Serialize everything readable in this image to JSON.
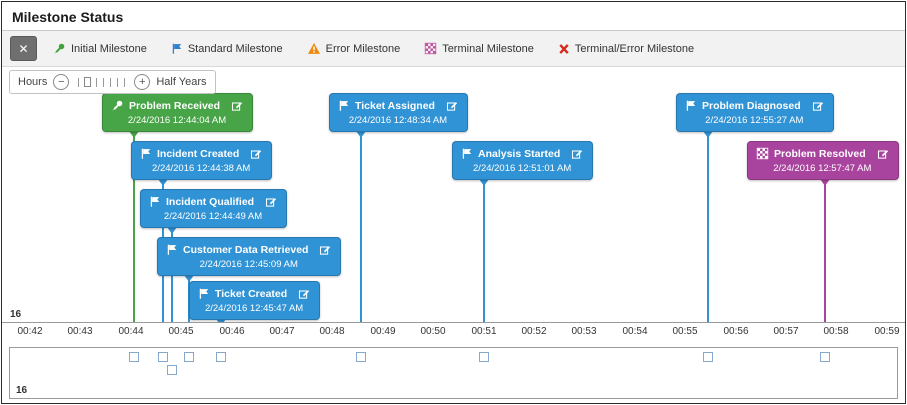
{
  "header": {
    "title": "Milestone Status"
  },
  "toolbar": {
    "close_label": "✕",
    "legend": [
      {
        "label": "Initial Milestone",
        "icon": "pushpin-icon",
        "color": "#3fa33a"
      },
      {
        "label": "Standard Milestone",
        "icon": "flag-icon",
        "color": "#2e7fd0"
      },
      {
        "label": "Error Milestone",
        "icon": "warning-icon",
        "color": "#ef8a10"
      },
      {
        "label": "Terminal Milestone",
        "icon": "checkered-flag-icon",
        "color": "#c2509f"
      },
      {
        "label": "Terminal/Error Milestone",
        "icon": "cross-icon",
        "color": "#d42a1e"
      }
    ]
  },
  "zoom": {
    "left_label": "Hours",
    "right_label": "Half Years",
    "minus_label": "−",
    "plus_label": "+",
    "minus_icon": "circle-minus-icon",
    "plus_icon": "circle-plus-icon",
    "ticks_before_handle": 1,
    "ticks_after_handle": 5
  },
  "timeline": {
    "row_label": "16",
    "axis_labels": [
      "00:42",
      "00:43",
      "00:44",
      "00:45",
      "00:46",
      "00:47",
      "00:48",
      "00:49",
      "00:50",
      "00:51",
      "00:52",
      "00:53",
      "00:54",
      "00:55",
      "00:56",
      "00:57",
      "00:58",
      "00:59"
    ],
    "type_icons": {
      "initial": "pushpin-icon",
      "standard": "flag-icon",
      "terminal": "checkered-flag-icon"
    },
    "type_colors": {
      "initial": "#47a447",
      "standard": "#3093d5",
      "terminal": "#a9449e"
    },
    "card_edit_icon": "edit-icon",
    "milestones": [
      {
        "name": "Problem Received",
        "timestamp": "2/24/2016 12:44:04 AM",
        "time": "00:44:04",
        "type": "initial",
        "row": 0
      },
      {
        "name": "Incident Created",
        "timestamp": "2/24/2016 12:44:38 AM",
        "time": "00:44:38",
        "type": "standard",
        "row": 1
      },
      {
        "name": "Incident Qualified",
        "timestamp": "2/24/2016 12:44:49 AM",
        "time": "00:44:49",
        "type": "standard",
        "row": 2
      },
      {
        "name": "Customer Data Retrieved",
        "timestamp": "2/24/2016 12:45:09 AM",
        "time": "00:45:09",
        "type": "standard",
        "row": 3
      },
      {
        "name": "Ticket Created",
        "timestamp": "2/24/2016 12:45:47 AM",
        "time": "00:45:47",
        "type": "standard",
        "row": 4
      },
      {
        "name": "Ticket Assigned",
        "timestamp": "2/24/2016 12:48:34 AM",
        "time": "00:48:34",
        "type": "standard",
        "row": 0
      },
      {
        "name": "Analysis Started",
        "timestamp": "2/24/2016 12:51:01 AM",
        "time": "00:51:01",
        "type": "standard",
        "row": 1
      },
      {
        "name": "Problem Diagnosed",
        "timestamp": "2/24/2016 12:55:27 AM",
        "time": "00:55:27",
        "type": "standard",
        "row": 0
      },
      {
        "name": "Problem Resolved",
        "timestamp": "2/24/2016 12:57:47 AM",
        "time": "00:57:47",
        "type": "terminal",
        "row": 1
      }
    ]
  },
  "minimap": {
    "row_label": "16"
  }
}
